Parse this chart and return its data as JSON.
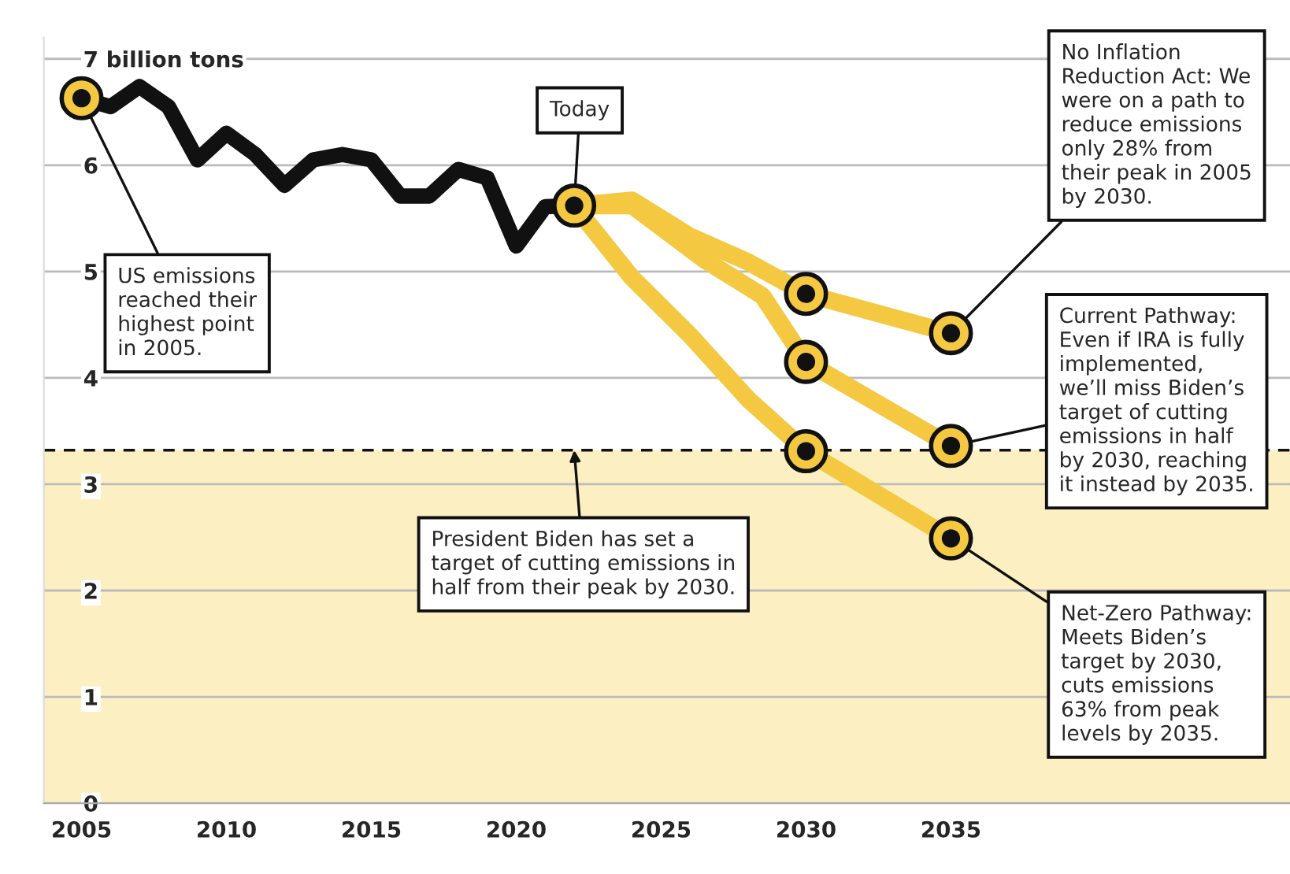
{
  "chart_data": {
    "type": "line",
    "xlim": [
      2003.7,
      2046.7
    ],
    "xticks": [
      2005,
      2010,
      2015,
      2020,
      2025,
      2030,
      2035
    ],
    "ylim": [
      0,
      7.2
    ],
    "yticks": [
      0,
      1,
      2,
      3,
      4,
      5,
      6,
      {
        "value": 7,
        "label": "7 billion tons"
      }
    ],
    "grid": "y",
    "legend": false,
    "series": [
      {
        "color": "#111111",
        "marker": "none",
        "x": [
          2005,
          2006,
          2007,
          2008,
          2009,
          2010,
          2011,
          2012,
          2013,
          2014,
          2015,
          2016,
          2017,
          2018,
          2019,
          2020,
          2021,
          2022
        ],
        "values": [
          6.63,
          6.55,
          6.74,
          6.55,
          6.05,
          6.3,
          6.1,
          5.81,
          6.05,
          6.1,
          6.05,
          5.71,
          5.71,
          5.96,
          5.88,
          5.24,
          5.61,
          5.62
        ]
      },
      {
        "color": "#f5c842",
        "marker": "none",
        "x": [
          2022,
          2024,
          2026,
          2028,
          2030,
          2035
        ],
        "values": [
          5.62,
          5.67,
          5.33,
          5.09,
          4.79,
          4.42
        ]
      },
      {
        "color": "#f5c842",
        "marker": "none",
        "x": [
          2022,
          2024,
          2026.5,
          2028.5,
          2030,
          2035
        ],
        "values": [
          5.62,
          5.62,
          5.11,
          4.77,
          4.15,
          3.36
        ]
      },
      {
        "color": "#f5c842",
        "marker": "none",
        "x": [
          2022,
          2024,
          2026,
          2028,
          2030,
          2035
        ],
        "values": [
          5.62,
          4.94,
          4.4,
          3.8,
          3.31,
          2.49
        ]
      },
      {
        "type": "scatter",
        "color": "#f5c842",
        "marker": "circle",
        "x": [
          2005,
          2022,
          2030,
          2030,
          2030,
          2035,
          2035,
          2035
        ],
        "values": [
          6.63,
          5.62,
          4.79,
          4.15,
          3.31,
          4.42,
          3.36,
          2.49
        ]
      }
    ],
    "ref_lines": [
      {
        "axis": "y",
        "value": 3.32,
        "color": "#111111",
        "line_style": "dashed"
      }
    ],
    "bands": [
      {
        "axis": "y",
        "from": 0,
        "to": 3.32,
        "color": "#fcefc2"
      }
    ],
    "annotations": [
      {
        "text": "US emissions\nreached their\nhighest point\nin 2005.",
        "x": 2005,
        "y": 6.63
      },
      {
        "text": "Today",
        "x": 2022,
        "y": 5.62
      },
      {
        "text": "President Biden has set a\ntarget of cutting emissions in\nhalf from their peak by 2030.",
        "x": 2022,
        "y": 3.32
      },
      {
        "text": "No Inflation\nReduction Act: We\nwere on a path to\nreduce emissions\nonly 28% from\ntheir peak in 2005\nby 2030.",
        "x": 2035,
        "y": 4.42
      },
      {
        "text": "Current Pathway:\nEven if IRA is fully\nimplemented,\nwe’ll miss Biden’s\ntarget of cutting\nemissions in half\nby 2030, reaching\nit instead by 2035.",
        "x": 2035,
        "y": 3.36
      },
      {
        "text": "Net-Zero Pathway:\nMeets Biden’s\ntarget by 2030,\ncuts emissions\n63% from peak\nlevels by 2035.",
        "x": 2035,
        "y": 2.49
      }
    ]
  }
}
